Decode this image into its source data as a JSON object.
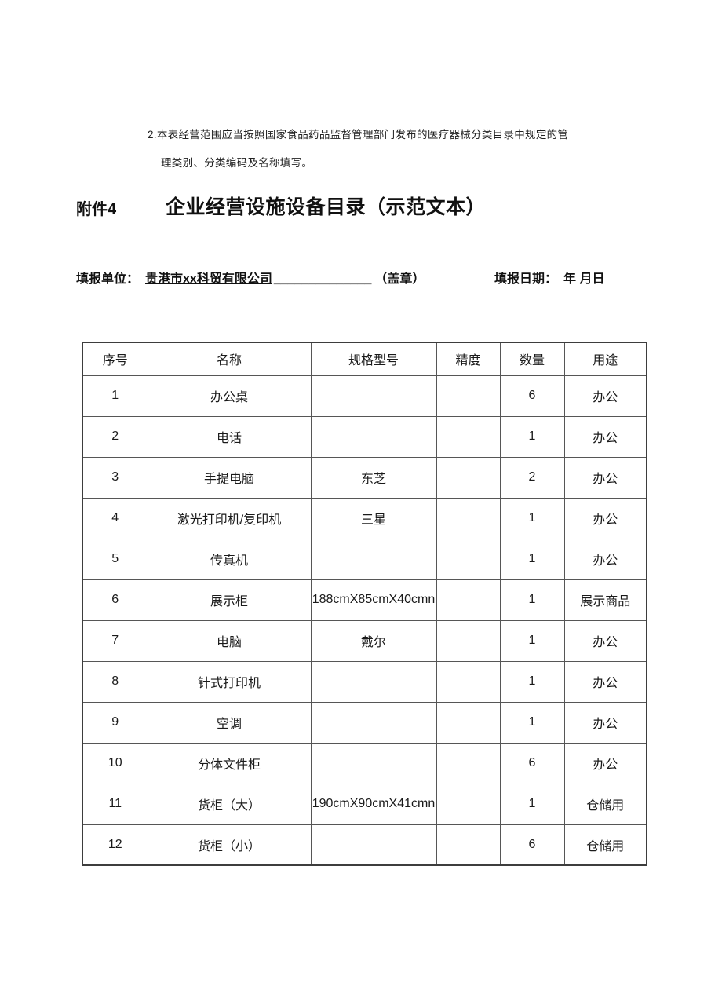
{
  "notes": {
    "line1": "2.本表经营范围应当按照国家食品药品监督管理部门发布的医疗器械分类目录中规定的管",
    "line2": "理类别、分类编码及名称填写。"
  },
  "header": {
    "attachment_label": "附件4",
    "title": "企业经营设施设备目录（示范文本）"
  },
  "form": {
    "unit_label": "填报单位：",
    "unit_value": "贵港市xx科贸有限公司",
    "unit_blank": "______________",
    "seal_label": "（盖章）",
    "date_label": "填报日期：",
    "date_value": "年 月日"
  },
  "table": {
    "columns": [
      {
        "key": "no",
        "label": "序号"
      },
      {
        "key": "name",
        "label": "名称"
      },
      {
        "key": "spec",
        "label": "规格型号"
      },
      {
        "key": "precision",
        "label": "精度"
      },
      {
        "key": "qty",
        "label": "数量"
      },
      {
        "key": "use",
        "label": "用途"
      }
    ],
    "rows": [
      {
        "no": "1",
        "name": "办公桌",
        "spec": "",
        "precision": "",
        "qty": "6",
        "use": "办公",
        "spec_align": "center"
      },
      {
        "no": "2",
        "name": "电话",
        "spec": "",
        "precision": "",
        "qty": "1",
        "use": "办公",
        "spec_align": "center"
      },
      {
        "no": "3",
        "name": "手提电脑",
        "spec": "东芝",
        "precision": "",
        "qty": "2",
        "use": "办公",
        "spec_align": "indent"
      },
      {
        "no": "4",
        "name": "激光打印机/复印机",
        "spec": "三星",
        "precision": "",
        "qty": "1",
        "use": "办公",
        "spec_align": "indent"
      },
      {
        "no": "5",
        "name": "传真机",
        "spec": "",
        "precision": "",
        "qty": "1",
        "use": "办公",
        "spec_align": "center"
      },
      {
        "no": "6",
        "name": "展示柜",
        "spec": "188cmX85cmX40cmn",
        "precision": "",
        "qty": "1",
        "use": "展示商品",
        "spec_align": "left"
      },
      {
        "no": "7",
        "name": "电脑",
        "spec": "戴尔",
        "precision": "",
        "qty": "1",
        "use": "办公",
        "spec_align": "center"
      },
      {
        "no": "8",
        "name": "针式打印机",
        "spec": "",
        "precision": "",
        "qty": "1",
        "use": "办公",
        "spec_align": "center"
      },
      {
        "no": "9",
        "name": "空调",
        "spec": "",
        "precision": "",
        "qty": "1",
        "use": "办公",
        "spec_align": "center"
      },
      {
        "no": "10",
        "name": "分体文件柜",
        "spec": "",
        "precision": "",
        "qty": "6",
        "use": "办公",
        "spec_align": "center"
      },
      {
        "no": "11",
        "name": "货柜（大）",
        "spec": "190cmX90cmX41cmn",
        "precision": "",
        "qty": "1",
        "use": "仓储用",
        "spec_align": "left"
      },
      {
        "no": "12",
        "name": "货柜（小）",
        "spec": "",
        "precision": "",
        "qty": "6",
        "use": "仓储用",
        "spec_align": "center"
      }
    ]
  }
}
